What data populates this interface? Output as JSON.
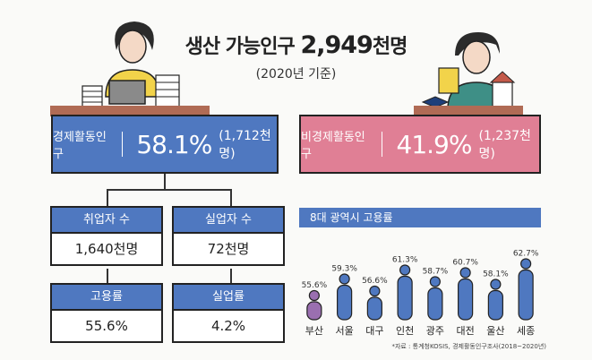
{
  "header": {
    "title_prefix": "생산 가능인구",
    "title_number": "2,949",
    "title_unit": "천명",
    "subtitle": "(2020년 기준)"
  },
  "economic_active": {
    "label": "경제활동인구",
    "percent": "58.1%",
    "count": "(1,712천명)",
    "color": "#4f78c0"
  },
  "economic_inactive": {
    "label": "비경제활동인구",
    "percent": "41.9%",
    "count": "(1,237천명)",
    "color": "#e07f95"
  },
  "cards": [
    {
      "label": "취업자 수",
      "value": "1,640천명"
    },
    {
      "label": "실업자 수",
      "value": "72천명"
    },
    {
      "label": "고용률",
      "value": "55.6%"
    },
    {
      "label": "실업률",
      "value": "4.2%"
    }
  ],
  "chart_data": {
    "type": "bar",
    "title": "8대 광역시 고용률",
    "categories": [
      "부산",
      "서울",
      "대구",
      "인천",
      "광주",
      "대전",
      "울산",
      "세종"
    ],
    "values": [
      55.6,
      59.3,
      56.6,
      61.3,
      58.7,
      60.7,
      58.1,
      62.7
    ],
    "value_labels": [
      "55.6%",
      "59.3%",
      "56.6%",
      "61.3%",
      "58.7%",
      "60.7%",
      "58.1%",
      "62.7%"
    ],
    "highlight_color": "#9a6fb0",
    "bar_color": "#4f78c0",
    "highlight_index": 0
  },
  "source_note": "*자료 : 통계청KOSIS, 경제활동인구조사(2018~2020년)"
}
